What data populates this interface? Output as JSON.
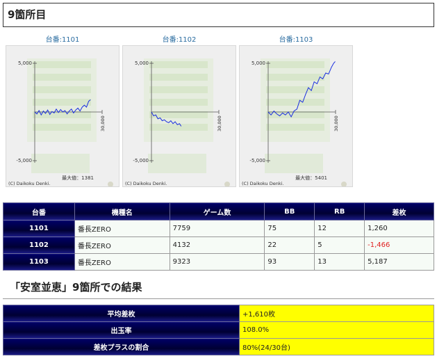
{
  "section_title": "9箇所目",
  "graphs": [
    {
      "label": "台番:1101",
      "max_text": "最大値：1381",
      "credit": "(C) Daikoku Denki.",
      "y_top": "5,000",
      "y_bottom": "-5,000",
      "x_end": "30,000",
      "line": [
        [
          0,
          0
        ],
        [
          300,
          -200
        ],
        [
          600,
          150
        ],
        [
          900,
          -300
        ],
        [
          1200,
          100
        ],
        [
          1500,
          -150
        ],
        [
          1800,
          200
        ],
        [
          2100,
          -250
        ],
        [
          2400,
          50
        ],
        [
          2700,
          -100
        ],
        [
          3000,
          300
        ],
        [
          3300,
          -50
        ],
        [
          3600,
          250
        ],
        [
          3900,
          0
        ],
        [
          4200,
          150
        ],
        [
          4500,
          -200
        ],
        [
          4800,
          100
        ],
        [
          5100,
          300
        ],
        [
          5400,
          -100
        ],
        [
          5700,
          200
        ],
        [
          6000,
          400
        ],
        [
          6300,
          100
        ],
        [
          6600,
          500
        ],
        [
          6900,
          700
        ],
        [
          7200,
          500
        ],
        [
          7500,
          1100
        ],
        [
          7759,
          1260
        ]
      ]
    },
    {
      "label": "台番:1102",
      "max_text": "",
      "credit": "(C) Daikoku Denki.",
      "y_top": "5,000",
      "y_bottom": "-5,000",
      "x_end": "30,000",
      "line": [
        [
          0,
          0
        ],
        [
          300,
          -400
        ],
        [
          600,
          -300
        ],
        [
          900,
          -700
        ],
        [
          1200,
          -600
        ],
        [
          1500,
          -900
        ],
        [
          1800,
          -800
        ],
        [
          2100,
          -1000
        ],
        [
          2400,
          -1100
        ],
        [
          2700,
          -900
        ],
        [
          3000,
          -1200
        ],
        [
          3300,
          -1000
        ],
        [
          3600,
          -1300
        ],
        [
          3900,
          -1200
        ],
        [
          4132,
          -1466
        ]
      ]
    },
    {
      "label": "台番:1103",
      "max_text": "最大値：5401",
      "credit": "(C) Daikoku Denki.",
      "y_top": "5,000",
      "y_bottom": "-5,000",
      "x_end": "30,000",
      "line": [
        [
          0,
          0
        ],
        [
          400,
          -300
        ],
        [
          800,
          100
        ],
        [
          1200,
          -200
        ],
        [
          1600,
          -400
        ],
        [
          2000,
          -100
        ],
        [
          2400,
          -300
        ],
        [
          2800,
          0
        ],
        [
          3200,
          -500
        ],
        [
          3600,
          100
        ],
        [
          4000,
          300
        ],
        [
          4400,
          1200
        ],
        [
          4800,
          1000
        ],
        [
          5200,
          1800
        ],
        [
          5600,
          2500
        ],
        [
          6000,
          2200
        ],
        [
          6400,
          3100
        ],
        [
          6800,
          2900
        ],
        [
          7200,
          3600
        ],
        [
          7600,
          3400
        ],
        [
          8000,
          4000
        ],
        [
          8400,
          3900
        ],
        [
          8800,
          4600
        ],
        [
          9100,
          5000
        ],
        [
          9323,
          5187
        ]
      ]
    }
  ],
  "table": {
    "headers": [
      "台番",
      "機種名",
      "ゲーム数",
      "BB",
      "RB",
      "差枚"
    ],
    "rows": [
      [
        "1101",
        "番長ZERO",
        "7759",
        "75",
        "12",
        "1,260"
      ],
      [
        "1102",
        "番長ZERO",
        "4132",
        "22",
        "5",
        "-1,466"
      ],
      [
        "1103",
        "番長ZERO",
        "9323",
        "93",
        "13",
        "5,187"
      ]
    ]
  },
  "result_title": "「安室並恵」9箇所での結果",
  "summary": [
    {
      "label": "平均差枚",
      "value": "+1,610枚"
    },
    {
      "label": "出玉率",
      "value": "108.0%"
    },
    {
      "label": "差枚プラスの割合",
      "value": "80%(24/30台)"
    }
  ]
}
